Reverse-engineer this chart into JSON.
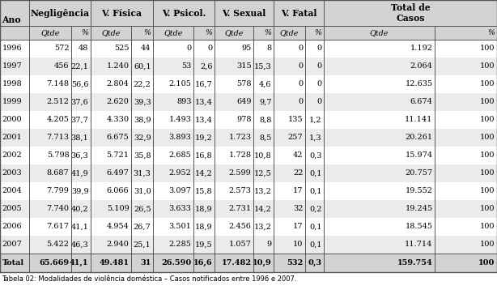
{
  "title": "Tabela 02: Modalidades de violência doméstica – Casos notificados entre 1996 e 2007.",
  "rows": [
    [
      "1996",
      "572",
      "48",
      "525",
      "44",
      "0",
      "0",
      "95",
      "8",
      "0",
      "0",
      "1.192",
      "100"
    ],
    [
      "1997",
      "456",
      "22,1",
      "1.240",
      "60,1",
      "53",
      "2,6",
      "315",
      "15,3",
      "0",
      "0",
      "2.064",
      "100"
    ],
    [
      "1998",
      "7.148",
      "56,6",
      "2.804",
      "22,2",
      "2.105",
      "16,7",
      "578",
      "4,6",
      "0",
      "0",
      "12.635",
      "100"
    ],
    [
      "1999",
      "2.512",
      "37,6",
      "2.620",
      "39,3",
      "893",
      "13,4",
      "649",
      "9,7",
      "0",
      "0",
      "6.674",
      "100"
    ],
    [
      "2000",
      "4.205",
      "37,7",
      "4.330",
      "38,9",
      "1.493",
      "13,4",
      "978",
      "8,8",
      "135",
      "1,2",
      "11.141",
      "100"
    ],
    [
      "2001",
      "7.713",
      "38,1",
      "6.675",
      "32,9",
      "3.893",
      "19,2",
      "1.723",
      "8,5",
      "257",
      "1,3",
      "20.261",
      "100"
    ],
    [
      "2002",
      "5.798",
      "36,3",
      "5.721",
      "35,8",
      "2.685",
      "16,8",
      "1.728",
      "10,8",
      "42",
      "0,3",
      "15.974",
      "100"
    ],
    [
      "2003",
      "8.687",
      "41,9",
      "6.497",
      "31,3",
      "2.952",
      "14,2",
      "2.599",
      "12,5",
      "22",
      "0,1",
      "20.757",
      "100"
    ],
    [
      "2004",
      "7.799",
      "39,9",
      "6.066",
      "31,0",
      "3.097",
      "15,8",
      "2.573",
      "13,2",
      "17",
      "0,1",
      "19.552",
      "100"
    ],
    [
      "2005",
      "7.740",
      "40,2",
      "5.109",
      "26,5",
      "3.633",
      "18,9",
      "2.731",
      "14,2",
      "32",
      "0,2",
      "19.245",
      "100"
    ],
    [
      "2006",
      "7.617",
      "41,1",
      "4.954",
      "26,7",
      "3.501",
      "18,9",
      "2.456",
      "13,2",
      "17",
      "0,1",
      "18.545",
      "100"
    ],
    [
      "2007",
      "5.422",
      "46,3",
      "2.940",
      "25,1",
      "2.285",
      "19,5",
      "1.057",
      "9",
      "10",
      "0,1",
      "11.714",
      "100"
    ]
  ],
  "total_row": [
    "Total",
    "65.669",
    "41,1",
    "49.481",
    "31",
    "26.590",
    "16,6",
    "17.482",
    "10,9",
    "532",
    "0,3",
    "159.754",
    "100"
  ],
  "bg_color": "#ffffff",
  "header_bg": "#d3d3d3",
  "alt_row_bg": "#ebebeb",
  "total_bg": "#d3d3d3",
  "border_color": "#555555",
  "font_size": 7.0,
  "header_font_size": 7.8,
  "subheader_font_size": 6.8
}
